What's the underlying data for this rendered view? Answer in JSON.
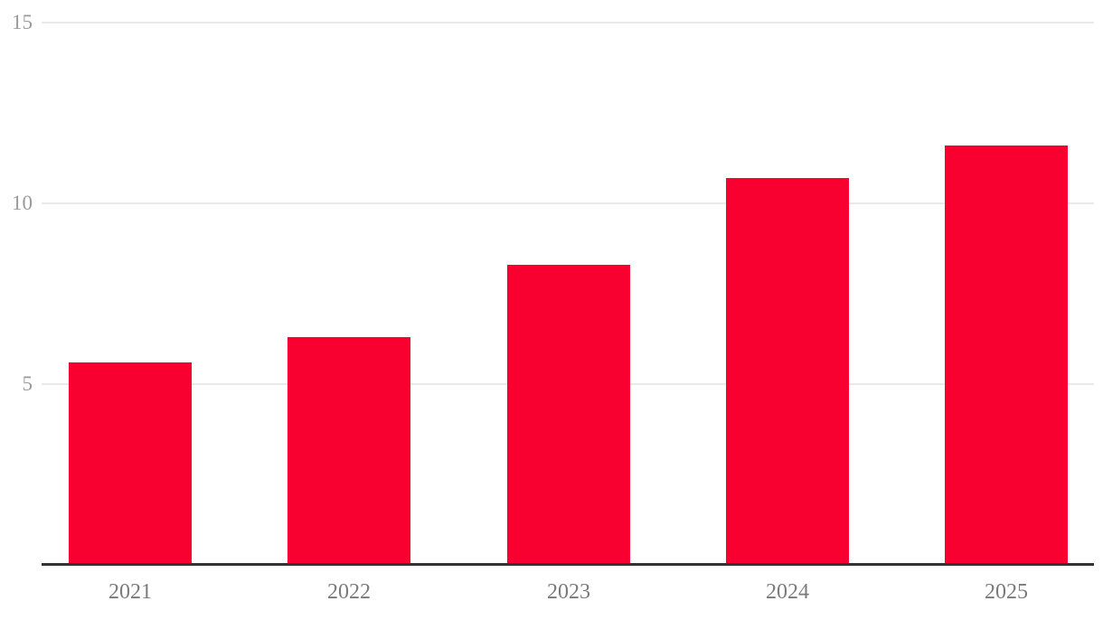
{
  "chart_data": {
    "type": "bar",
    "title": "",
    "xlabel": "",
    "ylabel": "",
    "categories": [
      "2021",
      "2022",
      "2023",
      "2024",
      "2025"
    ],
    "values": [
      5.6,
      6.3,
      8.3,
      10.7,
      11.6
    ],
    "ylim": [
      0,
      15
    ],
    "yticks": [
      5,
      10,
      15
    ],
    "grid": true,
    "legend": false,
    "colors": {
      "bar": "#f80030",
      "gridline": "#e9e9e9",
      "axis_line": "#333333",
      "y_tick_label": "#9a9a9a",
      "x_tick_label": "#7a7a7a",
      "background": "#ffffff"
    }
  }
}
